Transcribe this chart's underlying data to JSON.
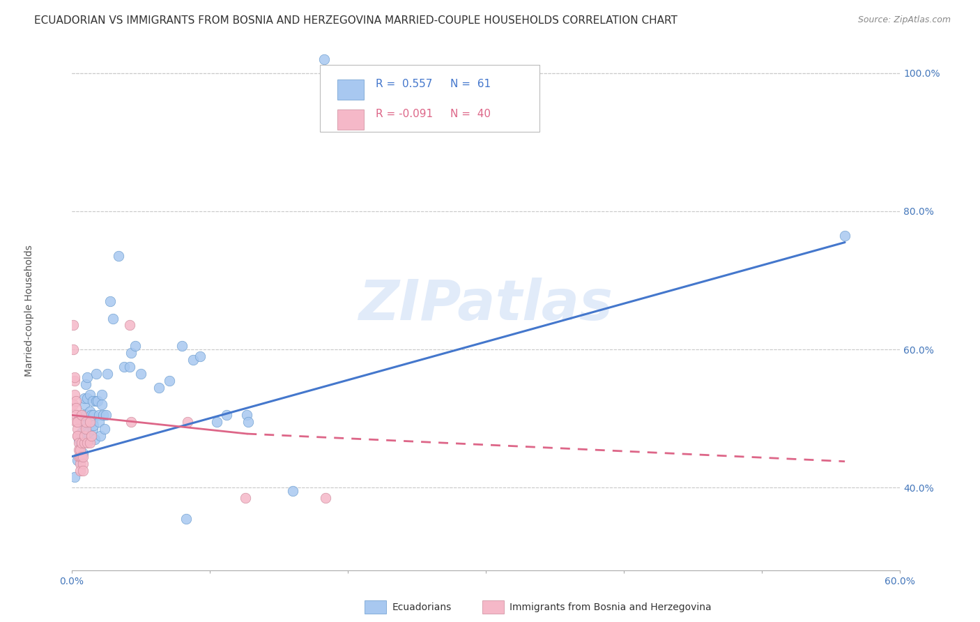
{
  "title": "ECUADORIAN VS IMMIGRANTS FROM BOSNIA AND HERZEGOVINA MARRIED-COUPLE HOUSEHOLDS CORRELATION CHART",
  "source": "Source: ZipAtlas.com",
  "ylabel": "Married-couple Households",
  "xlim": [
    0.0,
    0.6
  ],
  "ylim": [
    0.28,
    1.05
  ],
  "watermark": "ZIPatlas",
  "legend_label1": "Ecuadorians",
  "legend_label2": "Immigrants from Bosnia and Herzegovina",
  "blue_color": "#a8c8f0",
  "blue_edge_color": "#6699cc",
  "pink_color": "#f5b8c8",
  "pink_edge_color": "#cc8899",
  "blue_line_color": "#4477cc",
  "pink_line_color": "#dd6688",
  "blue_scatter": [
    [
      0.002,
      0.415
    ],
    [
      0.004,
      0.44
    ],
    [
      0.005,
      0.47
    ],
    [
      0.005,
      0.5
    ],
    [
      0.006,
      0.465
    ],
    [
      0.007,
      0.48
    ],
    [
      0.007,
      0.505
    ],
    [
      0.008,
      0.45
    ],
    [
      0.008,
      0.47
    ],
    [
      0.009,
      0.52
    ],
    [
      0.009,
      0.53
    ],
    [
      0.009,
      0.49
    ],
    [
      0.01,
      0.48
    ],
    [
      0.01,
      0.505
    ],
    [
      0.01,
      0.55
    ],
    [
      0.011,
      0.56
    ],
    [
      0.011,
      0.53
    ],
    [
      0.012,
      0.47
    ],
    [
      0.012,
      0.48
    ],
    [
      0.013,
      0.51
    ],
    [
      0.013,
      0.535
    ],
    [
      0.014,
      0.505
    ],
    [
      0.015,
      0.495
    ],
    [
      0.015,
      0.485
    ],
    [
      0.015,
      0.525
    ],
    [
      0.016,
      0.505
    ],
    [
      0.016,
      0.49
    ],
    [
      0.017,
      0.47
    ],
    [
      0.018,
      0.525
    ],
    [
      0.018,
      0.565
    ],
    [
      0.019,
      0.525
    ],
    [
      0.02,
      0.505
    ],
    [
      0.02,
      0.495
    ],
    [
      0.021,
      0.475
    ],
    [
      0.022,
      0.52
    ],
    [
      0.022,
      0.535
    ],
    [
      0.023,
      0.505
    ],
    [
      0.024,
      0.485
    ],
    [
      0.025,
      0.505
    ],
    [
      0.026,
      0.565
    ],
    [
      0.028,
      0.67
    ],
    [
      0.03,
      0.645
    ],
    [
      0.034,
      0.735
    ],
    [
      0.038,
      0.575
    ],
    [
      0.042,
      0.575
    ],
    [
      0.043,
      0.595
    ],
    [
      0.046,
      0.605
    ],
    [
      0.05,
      0.565
    ],
    [
      0.063,
      0.545
    ],
    [
      0.071,
      0.555
    ],
    [
      0.08,
      0.605
    ],
    [
      0.083,
      0.355
    ],
    [
      0.088,
      0.585
    ],
    [
      0.093,
      0.59
    ],
    [
      0.105,
      0.495
    ],
    [
      0.112,
      0.505
    ],
    [
      0.127,
      0.505
    ],
    [
      0.128,
      0.495
    ],
    [
      0.16,
      0.395
    ],
    [
      0.183,
      1.02
    ],
    [
      0.56,
      0.765
    ]
  ],
  "pink_scatter": [
    [
      0.001,
      0.52
    ],
    [
      0.001,
      0.635
    ],
    [
      0.001,
      0.6
    ],
    [
      0.002,
      0.555
    ],
    [
      0.002,
      0.56
    ],
    [
      0.002,
      0.535
    ],
    [
      0.003,
      0.525
    ],
    [
      0.003,
      0.515
    ],
    [
      0.003,
      0.505
    ],
    [
      0.003,
      0.495
    ],
    [
      0.004,
      0.475
    ],
    [
      0.004,
      0.485
    ],
    [
      0.004,
      0.475
    ],
    [
      0.004,
      0.495
    ],
    [
      0.005,
      0.465
    ],
    [
      0.005,
      0.445
    ],
    [
      0.005,
      0.455
    ],
    [
      0.006,
      0.435
    ],
    [
      0.006,
      0.425
    ],
    [
      0.006,
      0.445
    ],
    [
      0.006,
      0.455
    ],
    [
      0.007,
      0.505
    ],
    [
      0.007,
      0.465
    ],
    [
      0.007,
      0.445
    ],
    [
      0.008,
      0.435
    ],
    [
      0.008,
      0.425
    ],
    [
      0.008,
      0.445
    ],
    [
      0.009,
      0.465
    ],
    [
      0.009,
      0.475
    ],
    [
      0.01,
      0.485
    ],
    [
      0.01,
      0.495
    ],
    [
      0.011,
      0.465
    ],
    [
      0.013,
      0.495
    ],
    [
      0.013,
      0.465
    ],
    [
      0.014,
      0.475
    ],
    [
      0.042,
      0.635
    ],
    [
      0.043,
      0.495
    ],
    [
      0.084,
      0.495
    ],
    [
      0.126,
      0.385
    ],
    [
      0.184,
      0.385
    ]
  ],
  "blue_line": {
    "x0": 0.0,
    "y0": 0.445,
    "x1": 0.56,
    "y1": 0.755
  },
  "pink_solid_line": {
    "x0": 0.0,
    "y0": 0.505,
    "x1": 0.127,
    "y1": 0.478
  },
  "pink_dashed_line": {
    "x0": 0.127,
    "y0": 0.478,
    "x1": 0.56,
    "y1": 0.438
  },
  "yticks": [
    0.4,
    0.6,
    0.8,
    1.0
  ],
  "ytick_labels": [
    "40.0%",
    "60.0%",
    "80.0%",
    "100.0%"
  ],
  "xtick_left_label": "0.0%",
  "xtick_right_label": "60.0%",
  "grid_color": "#cccccc",
  "bg_color": "#ffffff",
  "title_fontsize": 11,
  "source_fontsize": 9,
  "axis_label_color": "#4477bb",
  "legend_r1": "R =  0.557",
  "legend_n1": "N =  61",
  "legend_r2": "R = -0.091",
  "legend_n2": "N =  40"
}
